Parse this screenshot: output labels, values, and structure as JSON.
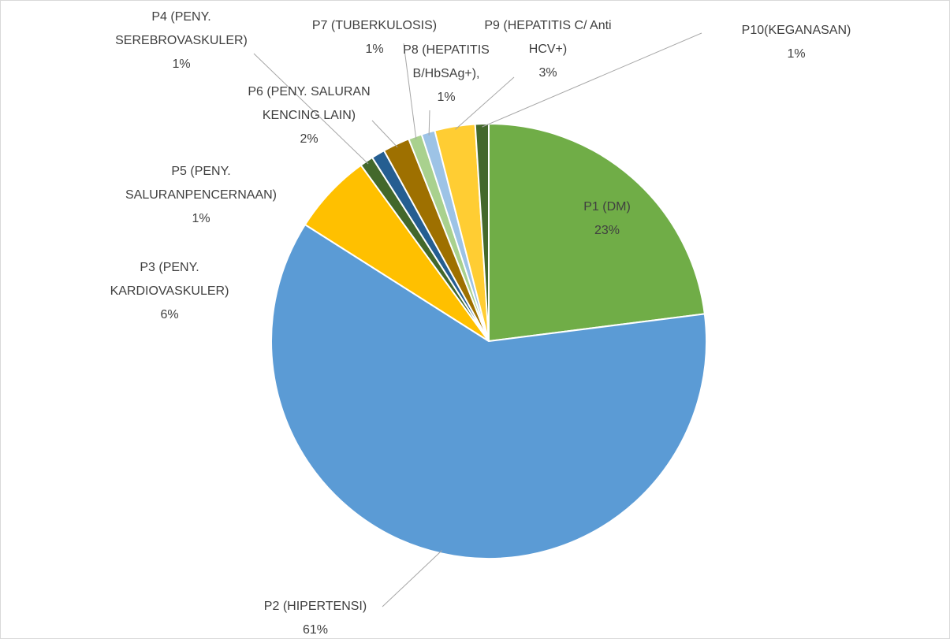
{
  "chart_data": {
    "type": "pie",
    "categories": [
      "P1 (DM)",
      "P2 (HIPERTENSI)",
      "P3 (PENY. KARDIOVASKULER)",
      "P4 (PENY. SEREBROVASKULER)",
      "P5 (PENY. SALURANPENCERNAAN)",
      "P6 (PENY. SALURAN KENCING LAIN)",
      "P7 (TUBERKULOSIS)",
      "P8 (HEPATITIS B/HbSAg+),",
      "P9 (HEPATITIS C/ Anti HCV+)",
      "P10(KEGANASAN)"
    ],
    "values": [
      23,
      61,
      6,
      1,
      1,
      2,
      1,
      1,
      3,
      1
    ],
    "value_labels": [
      "23%",
      "61%",
      "6%",
      "1%",
      "1%",
      "2%",
      "1%",
      "1%",
      "3%",
      "1%"
    ],
    "colors": [
      "#70ad47",
      "#5b9bd5",
      "#ffc000",
      "#43682b",
      "#255e91",
      "#9e7000",
      "#a9d18e",
      "#9dc3e6",
      "#ffcd33",
      "#43682b"
    ]
  }
}
